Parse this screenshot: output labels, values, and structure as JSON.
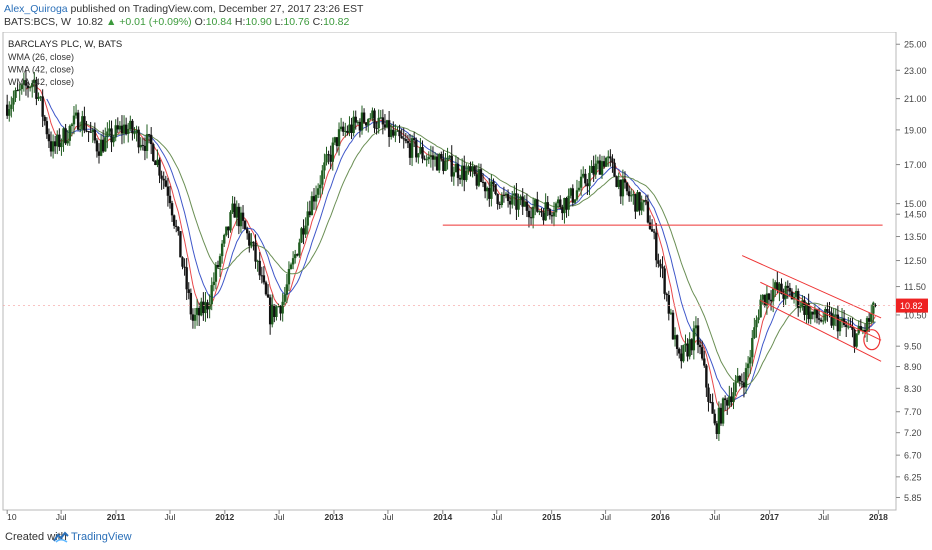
{
  "header": {
    "author": "Alex_Quiroga",
    "published": " published on TradingView.com, December 27, 2017 23:26 EST",
    "symbol": "BATS:BCS, W",
    "last": "10.82",
    "change": "+0.01 (+0.09%)",
    "o_label": "O:",
    "o": "10.84",
    "h_label": "H:",
    "h": "10.90",
    "l_label": "L:",
    "l": "10.76",
    "c_label": "C:",
    "c": "10.82"
  },
  "footer": {
    "created_with": "Created with",
    "brand": "TradingView"
  },
  "colors": {
    "up": "#1f5c1f",
    "down": "#111111",
    "wma_fast": "#e8484a",
    "wma_mid": "#3f57c9",
    "wma_slow": "#6b8f55",
    "resistance": "#ee3333",
    "channel": "#ee3333",
    "price_tag": "#ee2222"
  },
  "chart_data": {
    "type": "candlestick",
    "title": "BARCLAYS PLC, W, BATS",
    "legend": [
      "WMA (26, close)",
      "WMA (42, close)",
      "WMA (42, close)"
    ],
    "y_axis": {
      "scale": "log",
      "ticks": [
        "25.00",
        "23.00",
        "21.00",
        "19.00",
        "17.00",
        "15.00",
        "14.50",
        "13.50",
        "12.50",
        "11.50",
        "10.50",
        "9.50",
        "8.90",
        "8.30",
        "7.70",
        "7.20",
        "6.70",
        "6.25",
        "5.85"
      ]
    },
    "x_axis": {
      "ticks": [
        "10",
        "Jul",
        "2011",
        "Jul",
        "2012",
        "Jul",
        "2013",
        "Jul",
        "2014",
        "Jul",
        "2015",
        "Jul",
        "2016",
        "Jul",
        "2017",
        "Jul",
        "2018"
      ]
    },
    "last_price_tag": "10.82",
    "price_path": [
      {
        "date": "2010-01-01",
        "close": 20.6
      },
      {
        "date": "2010-04-01",
        "close": 22.3
      },
      {
        "date": "2010-06-01",
        "close": 17.8
      },
      {
        "date": "2010-09-01",
        "close": 19.8
      },
      {
        "date": "2010-11-01",
        "close": 18.0
      },
      {
        "date": "2011-02-01",
        "close": 19.2
      },
      {
        "date": "2011-05-01",
        "close": 18.0
      },
      {
        "date": "2011-07-01",
        "close": 15.4
      },
      {
        "date": "2011-09-15",
        "close": 10.3
      },
      {
        "date": "2011-11-01",
        "close": 10.8
      },
      {
        "date": "2012-02-01",
        "close": 14.8
      },
      {
        "date": "2012-04-01",
        "close": 13.1
      },
      {
        "date": "2012-06-01",
        "close": 10.5
      },
      {
        "date": "2012-07-15",
        "close": 11.0
      },
      {
        "date": "2012-10-01",
        "close": 14.6
      },
      {
        "date": "2013-01-15",
        "close": 18.6
      },
      {
        "date": "2013-05-01",
        "close": 19.9
      },
      {
        "date": "2013-08-01",
        "close": 18.4
      },
      {
        "date": "2013-11-01",
        "close": 17.5
      },
      {
        "date": "2014-02-01",
        "close": 16.9
      },
      {
        "date": "2014-05-01",
        "close": 16.2
      },
      {
        "date": "2014-08-01",
        "close": 15.1
      },
      {
        "date": "2014-12-01",
        "close": 14.7
      },
      {
        "date": "2015-03-01",
        "close": 15.2
      },
      {
        "date": "2015-07-01",
        "close": 17.4
      },
      {
        "date": "2015-09-01",
        "close": 15.6
      },
      {
        "date": "2015-11-15",
        "close": 14.7
      },
      {
        "date": "2016-01-15",
        "close": 11.6
      },
      {
        "date": "2016-03-01",
        "close": 9.0
      },
      {
        "date": "2016-05-01",
        "close": 9.9
      },
      {
        "date": "2016-07-01",
        "close": 7.3
      },
      {
        "date": "2016-08-15",
        "close": 8.1
      },
      {
        "date": "2016-10-15",
        "close": 8.7
      },
      {
        "date": "2016-12-01",
        "close": 11.0
      },
      {
        "date": "2017-01-15",
        "close": 11.4
      },
      {
        "date": "2017-04-01",
        "close": 11.1
      },
      {
        "date": "2017-06-01",
        "close": 10.4
      },
      {
        "date": "2017-08-15",
        "close": 10.3
      },
      {
        "date": "2017-10-15",
        "close": 9.8
      },
      {
        "date": "2017-11-15",
        "close": 10.0
      },
      {
        "date": "2017-12-27",
        "close": 10.82
      }
    ],
    "annotations": {
      "horizontal_line": {
        "price": 14.0,
        "from": "2014-01-01",
        "to": "2018-01-15"
      },
      "channel_upper": [
        {
          "date": "2016-10-01",
          "price": 12.7
        },
        {
          "date": "2018-01-10",
          "price": 10.4
        }
      ],
      "channel_lower": [
        {
          "date": "2016-12-01",
          "price": 11.0
        },
        {
          "date": "2018-01-10",
          "price": 9.05
        }
      ],
      "circle": {
        "date": "2017-12-10",
        "price": 9.7
      }
    }
  }
}
